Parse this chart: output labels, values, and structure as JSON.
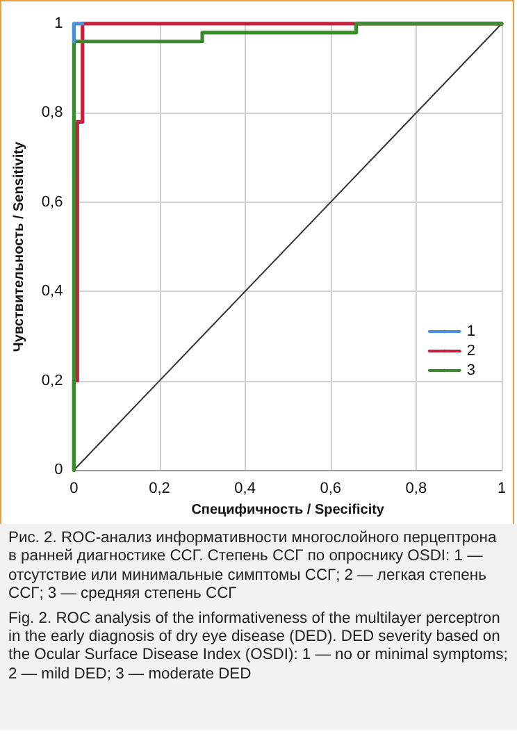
{
  "chart_data": {
    "type": "line",
    "xlabel": "Специфичность / Specificity",
    "ylabel": "Чувствительность / Sensitivity",
    "xlim": [
      0,
      1
    ],
    "ylim": [
      0,
      1
    ],
    "xticks": [
      0,
      {
        "value": 0.2,
        "label": "0,2"
      },
      {
        "value": 0.4,
        "label": "0,4"
      },
      {
        "value": 0.6,
        "label": "0,6"
      },
      {
        "value": 0.8,
        "label": "0,8"
      },
      1
    ],
    "yticks": [
      0,
      {
        "value": 0.2,
        "label": "0,2"
      },
      {
        "value": 0.4,
        "label": "0,4"
      },
      {
        "value": 0.6,
        "label": "0,6"
      },
      {
        "value": 0.8,
        "label": "0,8"
      },
      1
    ],
    "grid": true,
    "legend": "bottom right",
    "marker": "none",
    "line_style": "solid",
    "series": [
      {
        "name": "1",
        "color": "#4a90d9",
        "x": [
          0,
          0,
          0.02
        ],
        "values": [
          0.96,
          1,
          1
        ]
      },
      {
        "name": "2",
        "color": "#c8203c",
        "x": [
          0,
          0,
          0.008,
          0.008,
          0.02,
          0.02,
          1
        ],
        "values": [
          0,
          0.2,
          0.2,
          0.78,
          0.78,
          1,
          1
        ]
      },
      {
        "name": "3",
        "color": "#3a8a2e",
        "x": [
          0,
          0,
          0.3,
          0.3,
          0.66,
          0.66,
          1
        ],
        "values": [
          0,
          0.96,
          0.96,
          0.98,
          0.98,
          1,
          1
        ]
      },
      {
        "color": "#333333",
        "x": [
          0,
          1
        ],
        "values": [
          0,
          1
        ]
      }
    ],
    "annotations": [
      "Рис. 2. ROC-анализ информативности многослойного перцептрона в ранней диагностике ССГ. Степень ССГ по опроснику OSDI: 1 — отсутствие или минимальные симптомы ССГ; 2 — легкая степень ССГ; 3 — средняя степень ССГ",
      "Fig. 2. ROC analysis of the informativeness of the multilayer perceptron in the early diagnosis of dry eye disease (DED). DED severity based on the Ocular Surface Disease Index (OSDI): 1 — no or minimal symptoms; 2 — mild DED; 3 — moderate DED"
    ]
  }
}
